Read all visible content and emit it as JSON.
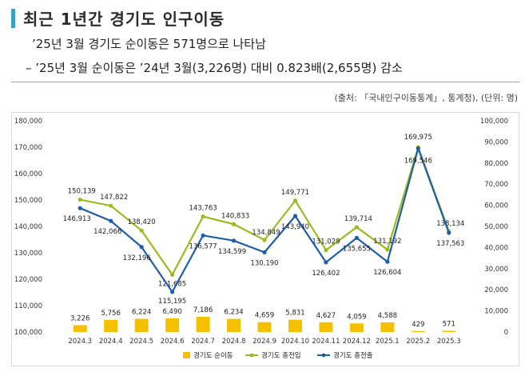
{
  "header": {
    "title": "최근 1년간 경기도 인구이동",
    "line1": "’25년 3월 경기도 순이동은 571명으로 나타남",
    "line2": "– ’25년 3월 순이동은 ’24년 3월(3,226명) 대비 0.823배(2,655명) 감소",
    "source": "(출처: 「국내인구이동통계」, 통계청), (단위: 명)"
  },
  "colors": {
    "accent": "#3aa0c8",
    "bar": "#f5c000",
    "in_line": "#9bbb1f",
    "out_line": "#1f5fa8"
  },
  "chart_data": {
    "type": "bar+line",
    "categories": [
      "2024.3",
      "2024.4",
      "2024.5",
      "2024.6",
      "2024.7",
      "2024.8",
      "2024.9",
      "2024.10",
      "2024.11",
      "2024.12",
      "2025.1",
      "2025.2",
      "2025.3"
    ],
    "left_axis": {
      "ylim": [
        100000,
        180000
      ],
      "ticks": [
        "100,000",
        "110,000",
        "120,000",
        "130,000",
        "140,000",
        "150,000",
        "160,000",
        "170,000",
        "180,000"
      ]
    },
    "right_axis": {
      "ylim": [
        0,
        100000
      ],
      "ticks": [
        "0",
        "10,000",
        "20,000",
        "30,000",
        "40,000",
        "50,000",
        "60,000",
        "70,000",
        "80,000",
        "90,000",
        "100,000"
      ]
    },
    "series": [
      {
        "name": "경기도 순이동",
        "type": "bar",
        "axis": "right",
        "values": [
          3226,
          5756,
          6224,
          6490,
          7186,
          6234,
          4659,
          5831,
          4627,
          4059,
          4588,
          429,
          571
        ],
        "labels": [
          "3,226",
          "5,756",
          "6,224",
          "6,490",
          "7,186",
          "6,234",
          "4,659",
          "5,831",
          "4,627",
          "4,059",
          "4,588",
          "429",
          "571"
        ]
      },
      {
        "name": "경기도 총전입",
        "type": "line",
        "axis": "left",
        "values": [
          150139,
          147822,
          138420,
          121685,
          143763,
          140833,
          134849,
          149771,
          131029,
          139714,
          131192,
          169975,
          138134
        ],
        "labels": [
          "150,139",
          "147,822",
          "138,420",
          "121,685",
          "143,763",
          "140,833",
          "134,849",
          "149,771",
          "131,029",
          "139,714",
          "131,192",
          "169,975",
          "138,134"
        ]
      },
      {
        "name": "경기도 총전출",
        "type": "line",
        "axis": "left",
        "values": [
          146913,
          142066,
          132196,
          115195,
          136577,
          134599,
          130190,
          143940,
          126402,
          135655,
          126604,
          169546,
          137563
        ],
        "labels": [
          "146,913",
          "142,066",
          "132,196",
          "115,195",
          "136,577",
          "134,599",
          "130,190",
          "143,940",
          "126,402",
          "135,655",
          "126,604",
          "169,546",
          "137,563"
        ]
      }
    ],
    "legend_position": "bottom",
    "grid": false
  }
}
